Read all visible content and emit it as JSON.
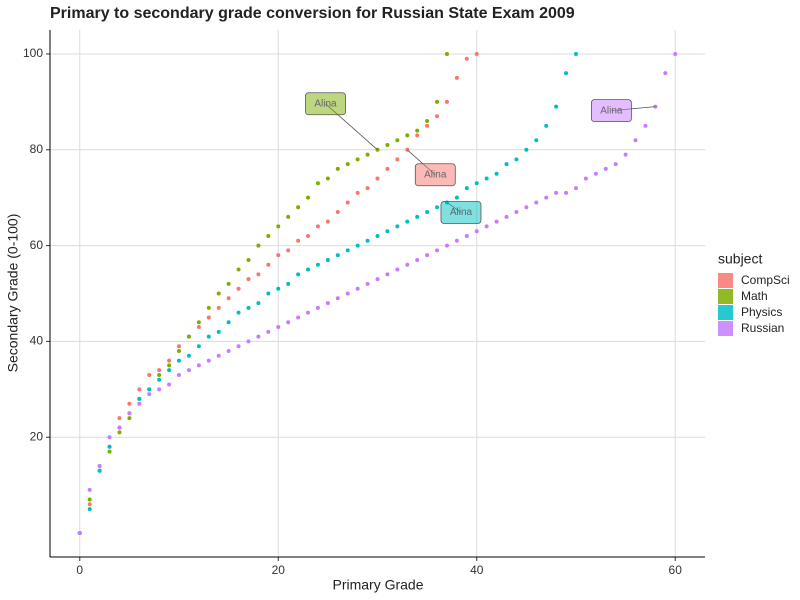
{
  "chart_data": {
    "type": "scatter",
    "title": "Primary to secondary grade conversion for Russian State Exam 2009",
    "x_label": "Primary Grade",
    "y_label": "Secondary Grade (0-100)",
    "legend_title": "subject",
    "legend_position": "right",
    "grid": true,
    "xlim": [
      -3,
      63
    ],
    "ylim": [
      -5,
      105
    ],
    "xticks": [
      0,
      20,
      40,
      60
    ],
    "yticks": [
      20,
      40,
      60,
      80,
      100
    ],
    "series": [
      {
        "name": "CompSci",
        "color": "#F8766D",
        "label": "Alina",
        "label_at": 33,
        "x": [
          0,
          1,
          2,
          3,
          4,
          5,
          6,
          7,
          8,
          9,
          10,
          11,
          12,
          13,
          14,
          15,
          16,
          17,
          18,
          19,
          20,
          21,
          22,
          23,
          24,
          25,
          26,
          27,
          28,
          29,
          30,
          31,
          32,
          33,
          34,
          35,
          36,
          37,
          38,
          39,
          40
        ],
        "values": [
          0,
          6,
          14,
          18,
          24,
          27,
          30,
          33,
          34,
          36,
          39,
          41,
          43,
          45,
          47,
          49,
          51,
          53,
          54,
          56,
          58,
          59,
          61,
          62,
          64,
          65,
          67,
          69,
          71,
          72,
          74,
          76,
          78,
          80,
          83,
          85,
          87,
          90,
          95,
          99,
          100
        ]
      },
      {
        "name": "Math",
        "color": "#7CAE00",
        "label": "Alina",
        "label_at": 30,
        "x": [
          0,
          1,
          2,
          3,
          4,
          5,
          6,
          7,
          8,
          9,
          10,
          11,
          12,
          13,
          14,
          15,
          16,
          17,
          18,
          19,
          20,
          21,
          22,
          23,
          24,
          25,
          26,
          27,
          28,
          29,
          30,
          31,
          32,
          33,
          34,
          35,
          36,
          37
        ],
        "values": [
          0,
          7,
          13,
          17,
          21,
          24,
          28,
          30,
          33,
          35,
          38,
          41,
          44,
          47,
          50,
          52,
          55,
          57,
          60,
          62,
          64,
          66,
          68,
          70,
          73,
          74,
          76,
          77,
          78,
          79,
          80,
          81,
          82,
          83,
          84,
          86,
          90,
          100
        ]
      },
      {
        "name": "Physics",
        "color": "#00BFC4",
        "label": "Alina",
        "label_at": 37,
        "x": [
          0,
          1,
          2,
          3,
          4,
          5,
          6,
          7,
          8,
          9,
          10,
          11,
          12,
          13,
          14,
          15,
          16,
          17,
          18,
          19,
          20,
          21,
          22,
          23,
          24,
          25,
          26,
          27,
          28,
          29,
          30,
          31,
          32,
          33,
          34,
          35,
          36,
          37,
          38,
          39,
          40,
          41,
          42,
          43,
          44,
          45,
          46,
          47,
          48,
          49,
          50
        ],
        "values": [
          0,
          5,
          13,
          18,
          22,
          25,
          28,
          30,
          32,
          34,
          36,
          37,
          39,
          41,
          42,
          44,
          46,
          47,
          48,
          50,
          51,
          52,
          54,
          55,
          56,
          57,
          58,
          59,
          60,
          61,
          62,
          63,
          64,
          65,
          66,
          67,
          68,
          69,
          70,
          72,
          73,
          74,
          75,
          77,
          78,
          80,
          82,
          85,
          89,
          96,
          100
        ]
      },
      {
        "name": "Russian",
        "color": "#C77CFF",
        "label": "Alina",
        "label_at": 58,
        "x": [
          0,
          1,
          2,
          3,
          4,
          5,
          6,
          7,
          8,
          9,
          10,
          11,
          12,
          13,
          14,
          15,
          16,
          17,
          18,
          19,
          20,
          21,
          22,
          23,
          24,
          25,
          26,
          27,
          28,
          29,
          30,
          31,
          32,
          33,
          34,
          35,
          36,
          37,
          38,
          39,
          40,
          41,
          42,
          43,
          44,
          45,
          46,
          47,
          48,
          49,
          50,
          51,
          52,
          53,
          54,
          55,
          56,
          57,
          58,
          59,
          60
        ],
        "values": [
          0,
          9,
          14,
          20,
          22,
          25,
          27,
          29,
          30,
          31,
          33,
          34,
          35,
          36,
          37,
          38,
          39,
          40,
          41,
          42,
          43,
          44,
          45,
          46,
          47,
          48,
          49,
          50,
          51,
          52,
          53,
          54,
          55,
          56,
          57,
          58,
          59,
          60,
          61,
          62,
          63,
          64,
          65,
          66,
          67,
          68,
          69,
          70,
          71,
          71,
          72,
          74,
          75,
          76,
          77,
          79,
          82,
          85,
          89,
          96,
          100
        ]
      }
    ]
  }
}
